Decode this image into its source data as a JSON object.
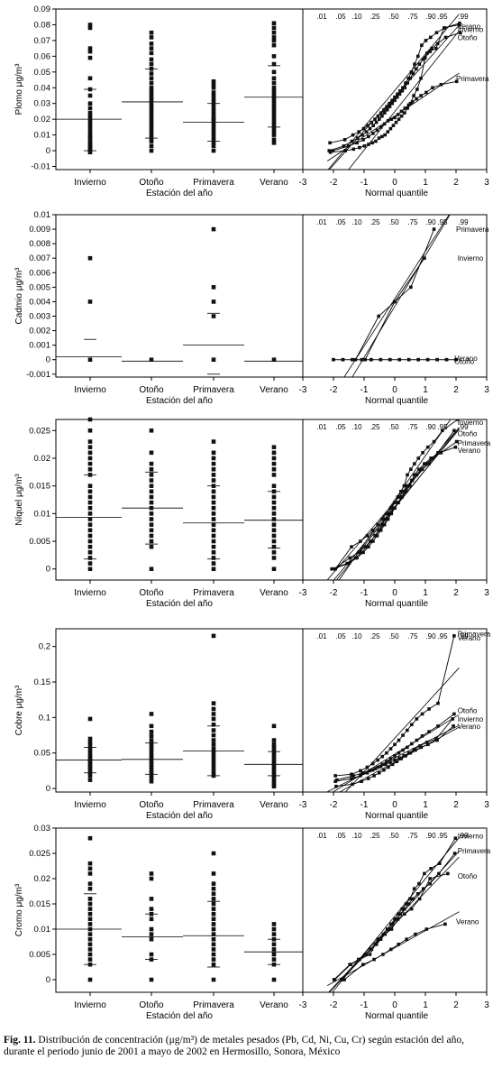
{
  "caption": {
    "label": "Fig. 11.",
    "text": "Distribución de concentración (μg/m³) de metales pesados (Pb, Cd, Ni, Cu, Cr) según estación del año, durante el periodo junio de 2001 a mayo de 2002 en Hermosillo, Sonora, México"
  },
  "chart_data": [
    {
      "type": "scatter",
      "metal": "Pb",
      "ylabel": "Plomo μg/m³",
      "xlabel": "Estación del año",
      "qq_xlabel": "Normal quantile",
      "categories": [
        "Invierno",
        "Otoño",
        "Primavera",
        "Verano"
      ],
      "yticks": [
        "-0.01",
        "0",
        "0.01",
        "0.02",
        "0.03",
        "0.04",
        "0.05",
        "0.06",
        "0.07",
        "0.08",
        "0.09"
      ],
      "ylim": [
        -0.012,
        0.09
      ],
      "qq_xticks": [
        "-3",
        "-2",
        "-1",
        "0",
        "1",
        "2",
        "3"
      ],
      "qq_xlim": [
        -3,
        3
      ],
      "prob_ticks": [
        ".01",
        ".05",
        ".10",
        ".25",
        ".50",
        ".75",
        ".90",
        ".95",
        ".99"
      ],
      "series": [
        {
          "name": "Invierno",
          "means": [
            0.02
          ],
          "q": [
            0.039,
            0.0
          ],
          "points": [
            0.08,
            0.078,
            0.065,
            0.063,
            0.059,
            0.046,
            0.039,
            0.035,
            0.03,
            0.027,
            0.024,
            0.022,
            0.02,
            0.018,
            0.016,
            0.014,
            0.012,
            0.01,
            0.009,
            0.008,
            0.006,
            0.005,
            0.004,
            0.003,
            0.002,
            0.001,
            0.0,
            -0.001
          ]
        },
        {
          "name": "Otoño",
          "means": [
            0.031
          ],
          "q": [
            0.052,
            0.008
          ],
          "points": [
            0.075,
            0.072,
            0.068,
            0.065,
            0.062,
            0.058,
            0.055,
            0.052,
            0.049,
            0.046,
            0.043,
            0.04,
            0.038,
            0.036,
            0.034,
            0.032,
            0.03,
            0.028,
            0.026,
            0.024,
            0.022,
            0.02,
            0.018,
            0.016,
            0.014,
            0.012,
            0.01,
            0.008,
            0.006,
            0.003,
            0.0
          ]
        },
        {
          "name": "Primavera",
          "means": [
            0.018
          ],
          "q": [
            0.03,
            0.006
          ],
          "points": [
            0.044,
            0.042,
            0.04,
            0.037,
            0.035,
            0.033,
            0.031,
            0.029,
            0.027,
            0.025,
            0.023,
            0.021,
            0.02,
            0.019,
            0.017,
            0.015,
            0.013,
            0.011,
            0.009,
            0.007,
            0.005,
            0.003,
            0.0
          ]
        },
        {
          "name": "Verano",
          "means": [
            0.034
          ],
          "q": [
            0.054,
            0.015
          ],
          "points": [
            0.081,
            0.078,
            0.075,
            0.072,
            0.07,
            0.067,
            0.06,
            0.055,
            0.05,
            0.046,
            0.043,
            0.04,
            0.038,
            0.036,
            0.034,
            0.032,
            0.03,
            0.028,
            0.026,
            0.024,
            0.022,
            0.02,
            0.018,
            0.016,
            0.014,
            0.012,
            0.01,
            0.007,
            0.005
          ]
        }
      ],
      "qq_labels": [
        {
          "name": "Verano",
          "x": 2.05,
          "y": 0.079
        },
        {
          "name": "Invierno",
          "x": 2.05,
          "y": 0.077
        },
        {
          "name": "Otoño",
          "x": 2.05,
          "y": 0.072
        },
        {
          "name": "Primavera",
          "x": 2.0,
          "y": 0.046
        }
      ]
    },
    {
      "type": "scatter",
      "metal": "Cd",
      "ylabel": "Cadmio μg/m³",
      "xlabel": "Estación del año",
      "qq_xlabel": "Normal quantile",
      "categories": [
        "Invierno",
        "Otoño",
        "Primavera",
        "Verano"
      ],
      "yticks": [
        "-0.001",
        "0",
        "0.001",
        "0.002",
        "0.003",
        "0.004",
        "0.005",
        "0.006",
        "0.007",
        "0.008",
        "0.009",
        "0.01"
      ],
      "ylim": [
        -0.0012,
        0.01
      ],
      "qq_xticks": [
        "-3",
        "-2",
        "-1",
        "0",
        "1",
        "2",
        "3"
      ],
      "qq_xlim": [
        -3,
        3
      ],
      "prob_ticks": [
        ".01",
        ".05",
        ".10",
        ".25",
        ".50",
        ".75",
        ".90",
        ".95",
        ".99"
      ],
      "series": [
        {
          "name": "Invierno",
          "means": [
            0.0002
          ],
          "q": [
            0.0014
          ],
          "points": [
            0.007,
            0.004,
            0.0
          ]
        },
        {
          "name": "Otoño",
          "means": [
            -0.0001
          ],
          "q": [],
          "points": [
            0.0
          ]
        },
        {
          "name": "Primavera",
          "means": [
            0.001
          ],
          "q": [
            0.0032,
            -0.001
          ],
          "points": [
            0.009,
            0.005,
            0.004,
            0.003,
            0.0
          ]
        },
        {
          "name": "Verano",
          "means": [
            -0.0001
          ],
          "q": [],
          "points": [
            0.0
          ]
        }
      ],
      "qq_labels": [
        {
          "name": "Primavera",
          "x": 2.0,
          "y": 0.009
        },
        {
          "name": "Invierno",
          "x": 2.05,
          "y": 0.007
        },
        {
          "name": "Verano",
          "x": 1.95,
          "y": 0.0001
        },
        {
          "name": "Otoño",
          "x": 1.95,
          "y": -0.0001
        }
      ]
    },
    {
      "type": "scatter",
      "metal": "Ni",
      "ylabel": "Níquel μg/m³",
      "xlabel": "Estación del año",
      "qq_xlabel": "Normal quantile",
      "categories": [
        "Invierno",
        "Otoño",
        "Primavera",
        "Verano"
      ],
      "yticks": [
        "0",
        "0.005",
        "0.01",
        "0.015",
        "0.02",
        "0.025"
      ],
      "ylim": [
        -0.002,
        0.027
      ],
      "qq_xticks": [
        "-3",
        "-2",
        "-1",
        "0",
        "1",
        "2",
        "3"
      ],
      "qq_xlim": [
        -3,
        3
      ],
      "prob_ticks": [
        ".01",
        ".05",
        ".10",
        ".25",
        ".50",
        ".75",
        ".90",
        ".95",
        ".99"
      ],
      "series": [
        {
          "name": "Invierno",
          "means": [
            0.0093
          ],
          "q": [
            0.017,
            0.0018
          ],
          "points": [
            0.027,
            0.025,
            0.023,
            0.022,
            0.021,
            0.02,
            0.019,
            0.018,
            0.017,
            0.015,
            0.014,
            0.013,
            0.012,
            0.011,
            0.01,
            0.009,
            0.008,
            0.007,
            0.006,
            0.005,
            0.004,
            0.003,
            0.002,
            0.001,
            0.0
          ]
        },
        {
          "name": "Otoño",
          "means": [
            0.011
          ],
          "q": [
            0.0175,
            0.0045
          ],
          "points": [
            0.025,
            0.021,
            0.019,
            0.018,
            0.017,
            0.016,
            0.015,
            0.014,
            0.013,
            0.012,
            0.011,
            0.01,
            0.009,
            0.008,
            0.007,
            0.006,
            0.005,
            0.004,
            0.0
          ]
        },
        {
          "name": "Primavera",
          "means": [
            0.0083
          ],
          "q": [
            0.015,
            0.0018
          ],
          "points": [
            0.023,
            0.021,
            0.02,
            0.019,
            0.018,
            0.017,
            0.016,
            0.015,
            0.014,
            0.013,
            0.012,
            0.011,
            0.01,
            0.009,
            0.008,
            0.007,
            0.006,
            0.005,
            0.004,
            0.003,
            0.002,
            0.001,
            0.0
          ]
        },
        {
          "name": "Verano",
          "means": [
            0.0088
          ],
          "q": [
            0.014,
            0.0038
          ],
          "points": [
            0.022,
            0.021,
            0.02,
            0.019,
            0.018,
            0.017,
            0.015,
            0.014,
            0.013,
            0.012,
            0.011,
            0.01,
            0.009,
            0.008,
            0.007,
            0.006,
            0.005,
            0.004,
            0.003,
            0.002,
            0.0
          ]
        }
      ],
      "qq_labels": [
        {
          "name": "Invierno",
          "x": 2.05,
          "y": 0.0265
        },
        {
          "name": "Otoño",
          "x": 2.05,
          "y": 0.0245
        },
        {
          "name": "Primavera",
          "x": 2.05,
          "y": 0.0228
        },
        {
          "name": "Verano",
          "x": 2.05,
          "y": 0.0215
        }
      ]
    },
    {
      "type": "scatter",
      "metal": "Cu",
      "ylabel": "Cobre μg/m³",
      "xlabel": "Estación del año",
      "qq_xlabel": "Normal quantile",
      "categories": [
        "Invierno",
        "Otoño",
        "Primavera",
        "Verano"
      ],
      "yticks": [
        "0",
        "0.05",
        "0.1",
        "0.15",
        "0.2"
      ],
      "ylim": [
        -0.005,
        0.225
      ],
      "qq_xticks": [
        "-3",
        "-2",
        "-1",
        "0",
        "1",
        "2",
        "3"
      ],
      "qq_xlim": [
        -3,
        3
      ],
      "prob_ticks": [
        ".01",
        ".05",
        ".10",
        ".25",
        ".50",
        ".75",
        ".90",
        ".95",
        ".99"
      ],
      "series": [
        {
          "name": "Invierno",
          "means": [
            0.04
          ],
          "q": [
            0.058,
            0.022
          ],
          "points": [
            0.098,
            0.07,
            0.065,
            0.06,
            0.055,
            0.05,
            0.046,
            0.043,
            0.04,
            0.037,
            0.034,
            0.031,
            0.028,
            0.025,
            0.022,
            0.018,
            0.012
          ]
        },
        {
          "name": "Otoño",
          "means": [
            0.041
          ],
          "q": [
            0.064,
            0.02
          ],
          "points": [
            0.105,
            0.088,
            0.08,
            0.074,
            0.068,
            0.063,
            0.058,
            0.054,
            0.05,
            0.046,
            0.042,
            0.038,
            0.034,
            0.03,
            0.026,
            0.022,
            0.018,
            0.014,
            0.01
          ]
        },
        {
          "name": "Primavera",
          "means": [
            0.053
          ],
          "q": [
            0.088,
            0.018
          ],
          "points": [
            0.215,
            0.12,
            0.112,
            0.105,
            0.098,
            0.09,
            0.082,
            0.075,
            0.068,
            0.062,
            0.056,
            0.05,
            0.045,
            0.04,
            0.035,
            0.03,
            0.025,
            0.02,
            0.018
          ]
        },
        {
          "name": "Verano",
          "means": [
            0.034
          ],
          "q": [
            0.052,
            0.018
          ],
          "points": [
            0.088,
            0.068,
            0.062,
            0.058,
            0.054,
            0.05,
            0.046,
            0.042,
            0.038,
            0.034,
            0.03,
            0.026,
            0.022,
            0.018,
            0.014,
            0.01,
            0.006,
            0.003
          ]
        }
      ],
      "qq_labels": [
        {
          "name": "Primavera",
          "x": 2.05,
          "y": 0.218
        },
        {
          "name": "Verano",
          "x": 2.05,
          "y": 0.212
        },
        {
          "name": "Otoño",
          "x": 2.05,
          "y": 0.11
        },
        {
          "name": "Invierno",
          "x": 2.05,
          "y": 0.098
        },
        {
          "name": "Verano",
          "x": 2.05,
          "y": 0.088
        }
      ]
    },
    {
      "type": "scatter",
      "metal": "Cr",
      "ylabel": "Cromo μg/m³",
      "xlabel": "Estación del año",
      "qq_xlabel": "Normal quantile",
      "categories": [
        "Invierno",
        "Otoño",
        "Primavera",
        "Verano"
      ],
      "yticks": [
        "0",
        "0.005",
        "0.01",
        "0.015",
        "0.02",
        "0.025",
        "0.03"
      ],
      "ylim": [
        -0.0025,
        0.03
      ],
      "qq_xticks": [
        "-3",
        "-2",
        "-1",
        "0",
        "1",
        "2",
        "3"
      ],
      "qq_xlim": [
        -3,
        3
      ],
      "prob_ticks": [
        ".01",
        ".05",
        ".10",
        ".25",
        ".50",
        ".75",
        ".90",
        ".95",
        ".99"
      ],
      "series": [
        {
          "name": "Invierno",
          "means": [
            0.01
          ],
          "q": [
            0.017,
            0.003
          ],
          "points": [
            0.028,
            0.023,
            0.022,
            0.021,
            0.019,
            0.018,
            0.016,
            0.015,
            0.014,
            0.013,
            0.012,
            0.011,
            0.01,
            0.009,
            0.008,
            0.007,
            0.006,
            0.005,
            0.004,
            0.003,
            0.0
          ]
        },
        {
          "name": "Otoño",
          "means": [
            0.0085
          ],
          "q": [
            0.013,
            0.004
          ],
          "points": [
            0.021,
            0.02,
            0.016,
            0.014,
            0.013,
            0.012,
            0.01,
            0.009,
            0.008,
            0.005,
            0.004,
            0.0
          ]
        },
        {
          "name": "Primavera",
          "means": [
            0.0087
          ],
          "q": [
            0.0155,
            0.0025
          ],
          "points": [
            0.025,
            0.021,
            0.019,
            0.018,
            0.017,
            0.016,
            0.015,
            0.014,
            0.013,
            0.012,
            0.011,
            0.01,
            0.009,
            0.008,
            0.007,
            0.006,
            0.005,
            0.004,
            0.003,
            0.0
          ]
        },
        {
          "name": "Verano",
          "means": [
            0.0055
          ],
          "q": [
            0.008,
            0.003
          ],
          "points": [
            0.011,
            0.01,
            0.009,
            0.008,
            0.007,
            0.006,
            0.005,
            0.004,
            0.003,
            0.0
          ]
        }
      ],
      "qq_labels": [
        {
          "name": "Invierno",
          "x": 2.05,
          "y": 0.0285
        },
        {
          "name": "Primavera",
          "x": 2.05,
          "y": 0.0255
        },
        {
          "name": "Otoño",
          "x": 2.05,
          "y": 0.0205
        },
        {
          "name": "Verano",
          "x": 2.0,
          "y": 0.0115
        }
      ]
    }
  ]
}
